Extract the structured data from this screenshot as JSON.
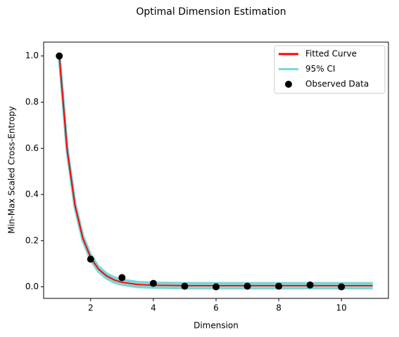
{
  "chart_data": {
    "type": "line",
    "title": "Optimal Dimension Estimation",
    "x_label": "Dimension",
    "y_label": "Min-Max Scaled Cross-Entropy",
    "xlim": [
      0.5,
      11.5
    ],
    "ylim": [
      -0.05,
      1.06
    ],
    "xticks": [
      2,
      4,
      6,
      8,
      10
    ],
    "yticks": [
      {
        "value": 0,
        "label": "0.0"
      },
      {
        "value": 0.2,
        "label": "0.2"
      },
      {
        "value": 0.4,
        "label": "0.4"
      },
      {
        "value": 0.6,
        "label": "0.6"
      },
      {
        "value": 0.8,
        "label": "0.8"
      },
      {
        "value": 1,
        "label": "1.0"
      }
    ],
    "legend": "upper right",
    "series": [
      {
        "name": "Fitted Curve",
        "type": "line",
        "color": "#ff0000",
        "x": [
          1,
          1.25,
          1.5,
          1.75,
          2,
          2.25,
          2.5,
          2.75,
          3,
          3.5,
          4,
          5,
          6,
          7,
          8,
          9,
          10,
          11
        ],
        "values": [
          1.0,
          0.594,
          0.353,
          0.211,
          0.127,
          0.077,
          0.048,
          0.03,
          0.02,
          0.01,
          0.007,
          0.005,
          0.005,
          0.005,
          0.005,
          0.005,
          0.005,
          0.005
        ]
      },
      {
        "name": "95% CI",
        "type": "band",
        "color": "#5fd0d0",
        "x": [
          1,
          1.25,
          1.5,
          1.75,
          2,
          2.25,
          2.5,
          2.75,
          3,
          3.5,
          4,
          5,
          6,
          7,
          8,
          9,
          10,
          11
        ],
        "lower": [
          0.99,
          0.584,
          0.343,
          0.201,
          0.117,
          0.067,
          0.038,
          0.02,
          0.01,
          0.0,
          -0.003,
          -0.005,
          -0.005,
          -0.005,
          -0.005,
          -0.005,
          -0.005,
          -0.005
        ],
        "upper": [
          1.01,
          0.604,
          0.363,
          0.221,
          0.137,
          0.087,
          0.058,
          0.04,
          0.03,
          0.02,
          0.017,
          0.015,
          0.015,
          0.015,
          0.015,
          0.015,
          0.015,
          0.015
        ]
      },
      {
        "name": "Observed Data",
        "type": "scatter",
        "color": "#000000",
        "x": [
          1,
          2,
          3,
          4,
          5,
          6,
          7,
          8,
          9,
          10
        ],
        "values": [
          1.0,
          0.12,
          0.04,
          0.015,
          0.003,
          0.0,
          0.003,
          0.003,
          0.008,
          0.0
        ]
      }
    ]
  }
}
